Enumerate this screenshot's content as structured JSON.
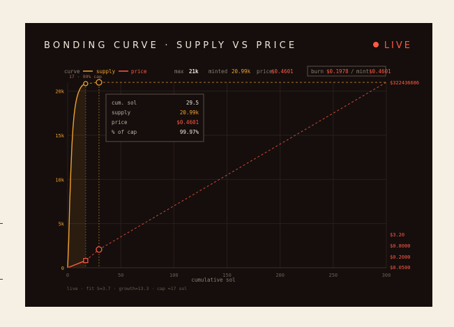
{
  "header": {
    "title": "BONDING CURVE · SUPPLY VS PRICE",
    "live_label": "LIVE"
  },
  "colors": {
    "supply": "#f0a030",
    "price": "#ff5a45",
    "grid": "#2a1f1b",
    "text": "#efe6da",
    "muted": "#8a7f74",
    "dim": "#6a5e55"
  },
  "legend": {
    "curve_label": "curve",
    "supply_label": "supply",
    "price_label": "price",
    "max_label": "max",
    "max_value": "21k",
    "minted_label": "minted",
    "minted_value": "20.99k",
    "price_stat_label": "price",
    "price_stat_value": "$0.4601"
  },
  "burn_box": {
    "burn_label": "burn",
    "burn_value": "$0.1978",
    "sep": "/",
    "mint_label": "mint",
    "mint_value": "$0.4601"
  },
  "tooltip": {
    "rows": [
      {
        "label": "cum. sol",
        "value": "29.5",
        "color": "#efe6da"
      },
      {
        "label": "supply",
        "value": "20.99k",
        "color": "#f0a030"
      },
      {
        "label": "price",
        "value": "$0.4601",
        "color": "#ff5a45"
      },
      {
        "label": "% of cap",
        "value": "99.97%",
        "color": "#efe6da"
      }
    ]
  },
  "cap_marker_label": "17 · 99% cap",
  "footer_note": "live · fit S=3.7 · growth=13.3 · cap ≈17 sol",
  "chart_data": {
    "type": "line",
    "xlabel": "cumulative sol",
    "xlim": [
      0,
      300
    ],
    "x_ticks": [
      "0",
      "50",
      "100",
      "150",
      "200",
      "250",
      "300"
    ],
    "ylim_supply": [
      0,
      21000
    ],
    "y_ticks_left": [
      "0",
      "5k",
      "10k",
      "15k",
      "20k"
    ],
    "y_ticks_left_values": [
      0,
      5000,
      10000,
      15000,
      20000
    ],
    "y_ticks_right": [
      "$0.0500",
      "$0.2000",
      "$0.8000",
      "$3.20"
    ],
    "y_ticks_right_values": [
      0.05,
      0.2,
      0.8,
      3.2
    ],
    "right_axis_scale": "log",
    "ylim_price": [
      0.05,
      322436686
    ],
    "top_right_label": "$322436686",
    "series": [
      {
        "name": "supply",
        "x": [
          0,
          1,
          2,
          3,
          4,
          5,
          6,
          7,
          8,
          9,
          10,
          11,
          12,
          13,
          14,
          15,
          16,
          17
        ],
        "y": [
          0,
          3000,
          7500,
          11000,
          13800,
          15800,
          17200,
          18200,
          18900,
          19400,
          19800,
          20100,
          20350,
          20520,
          20650,
          20740,
          20800,
          20850
        ]
      },
      {
        "name": "price",
        "x": [
          0,
          17,
          29.5,
          300
        ],
        "y": [
          0.05,
          0.12,
          0.4601,
          322436686
        ]
      }
    ],
    "markers": [
      {
        "series": "supply",
        "x": 17,
        "y": 20850,
        "shape": "circle"
      },
      {
        "series": "supply",
        "x": 29.5,
        "y": 20990,
        "shape": "circle"
      },
      {
        "series": "price",
        "x": 17,
        "y": 0.12,
        "shape": "square"
      },
      {
        "series": "price",
        "x": 29.5,
        "y": 0.4601,
        "shape": "circle"
      }
    ],
    "grid": true
  }
}
